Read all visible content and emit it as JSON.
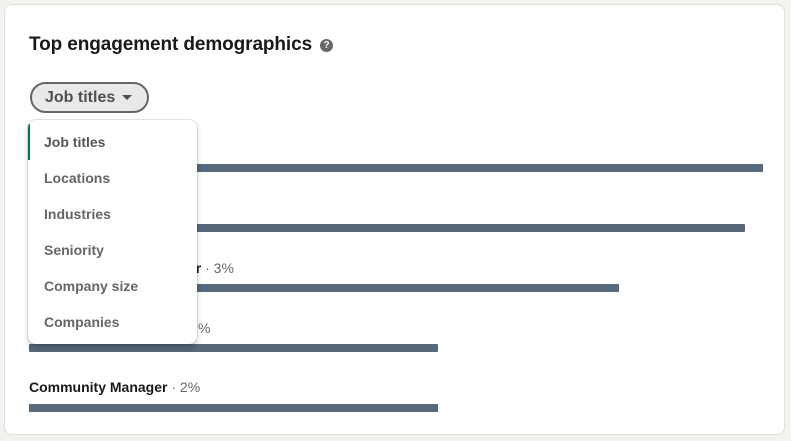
{
  "card": {
    "title": "Top engagement demographics",
    "help_glyph": "?",
    "help_icon": "question-circle-icon"
  },
  "filter": {
    "selected_label": "Job titles",
    "caret_icon": "caret-down-icon"
  },
  "dropdown": {
    "options": [
      "Job titles",
      "Locations",
      "Industries",
      "Seniority",
      "Company size",
      "Companies"
    ],
    "selected_index": 0,
    "accent_color": "#057642"
  },
  "rows": [
    {
      "name": "",
      "percent": "",
      "fill_fraction": 1.0
    },
    {
      "name": "",
      "percent": "",
      "fill_fraction": 0.976
    },
    {
      "name": "er",
      "percent": "· 3%",
      "fill_fraction": 0.804
    },
    {
      "name": "",
      "percent": "%",
      "fill_fraction": 0.557
    },
    {
      "name": "Community Manager",
      "percent": "· 2%",
      "fill_fraction": 0.557
    }
  ],
  "colors": {
    "bar": "#56687a",
    "page_background": "#f3f2ef"
  }
}
